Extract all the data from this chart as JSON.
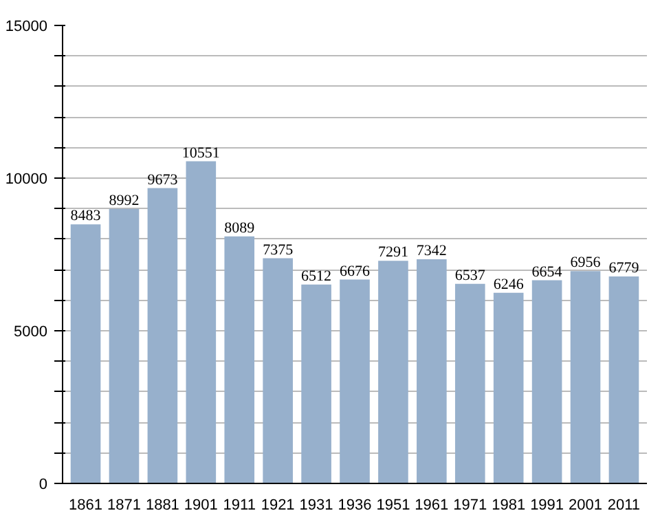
{
  "chart_data": {
    "type": "bar",
    "categories": [
      "1861",
      "1871",
      "1881",
      "1901",
      "1911",
      "1921",
      "1931",
      "1936",
      "1951",
      "1961",
      "1971",
      "1981",
      "1991",
      "2001",
      "2011"
    ],
    "values": [
      8483,
      8992,
      9673,
      10551,
      8089,
      7375,
      6512,
      6676,
      7291,
      7342,
      6537,
      6246,
      6654,
      6956,
      6779
    ],
    "color": "#97b0cc",
    "data_labels": true,
    "ylim": [
      0,
      15000
    ],
    "yticks": [
      0,
      {
        "value": 1000,
        "label": null
      },
      {
        "value": 2000,
        "label": null
      },
      {
        "value": 3000,
        "label": null
      },
      {
        "value": 4000,
        "label": null
      },
      5000,
      {
        "value": 6000,
        "label": null
      },
      {
        "value": 7000,
        "label": null
      },
      {
        "value": 8000,
        "label": null
      },
      {
        "value": 9000,
        "label": null
      },
      10000,
      {
        "value": 11000,
        "label": null
      },
      {
        "value": 12000,
        "label": null
      },
      {
        "value": 13000,
        "label": null
      },
      {
        "value": 14000,
        "label": null
      },
      15000
    ],
    "grid": "y"
  }
}
